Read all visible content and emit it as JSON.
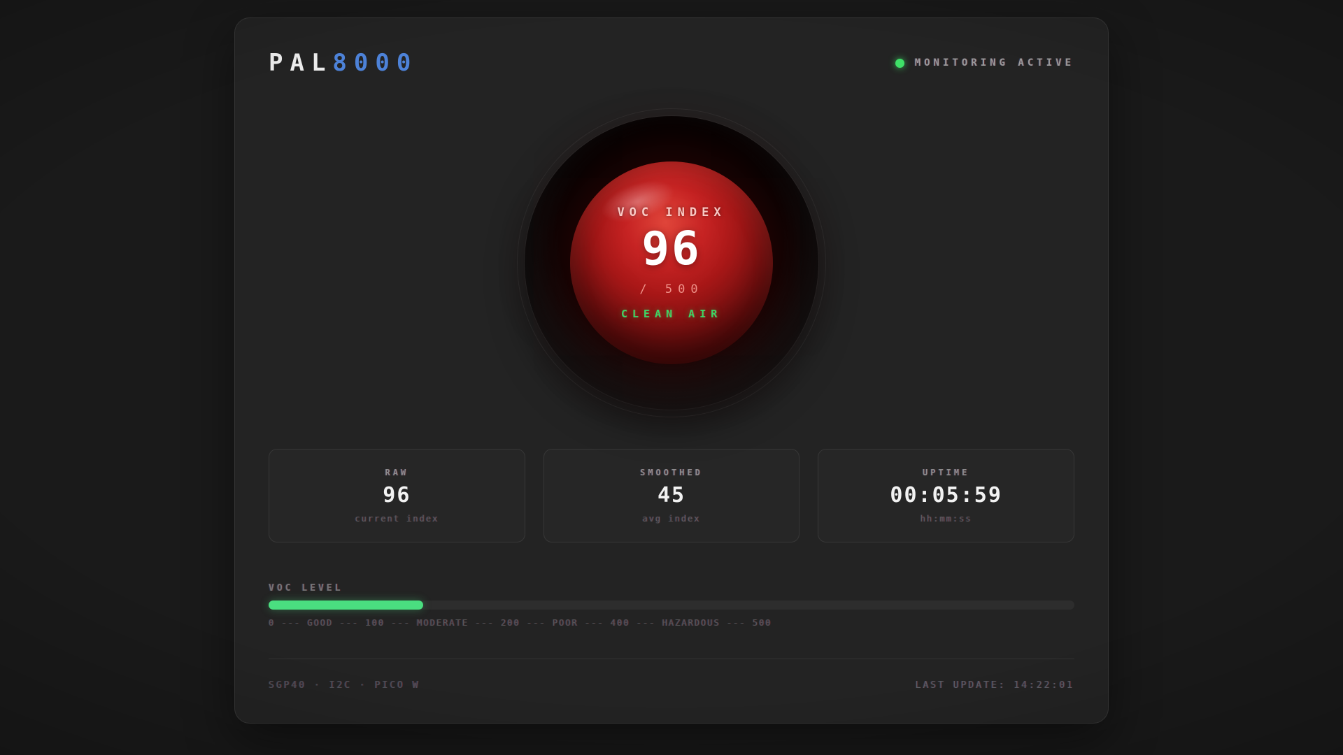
{
  "header": {
    "title_primary": "PAL",
    "title_secondary": "8000",
    "title_accent_color": "#4d82d8",
    "status": {
      "label": "MONITORING ACTIVE",
      "dot_color": "#3fe068"
    }
  },
  "eye": {
    "label": "VOC INDEX",
    "value": "96",
    "max_label": "/ 500",
    "status": "CLEAN AIR",
    "status_color": "#3bd665",
    "sphere_color": "#b51f1f"
  },
  "stats": [
    {
      "label": "RAW",
      "value": "96",
      "sub": "current index"
    },
    {
      "label": "SMOOTHED",
      "value": "45",
      "sub": "avg index"
    },
    {
      "label": "UPTIME",
      "value": "00:05:59",
      "sub": "hh:mm:ss"
    }
  ],
  "gauge": {
    "label": "VOC LEVEL",
    "value": 96,
    "max": 500,
    "percent_of_max": 19.2,
    "fill_color": "#4ade80",
    "scale_text": "0 --- GOOD --- 100 --- MODERATE --- 200 --- POOR --- 400 --- HAZARDOUS --- 500"
  },
  "footer": {
    "device_info": "SGP40 · I2C · PICO W",
    "last_update": "LAST UPDATE: 14:22:01"
  }
}
